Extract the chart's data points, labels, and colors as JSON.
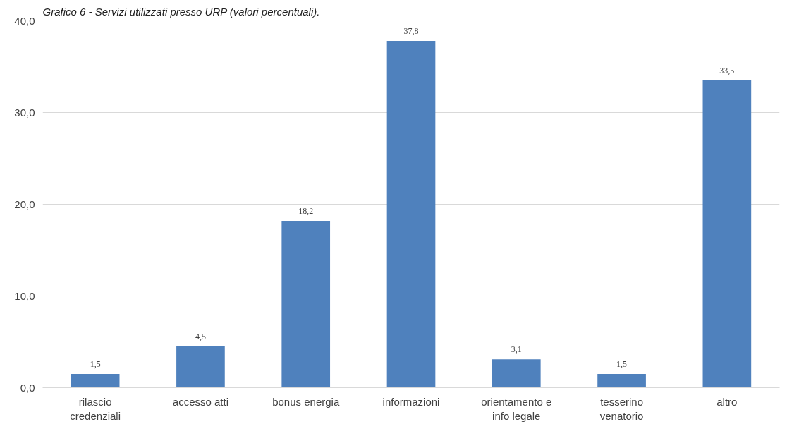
{
  "chart_data": {
    "type": "bar",
    "title": "Grafico 6 - Servizi utilizzati presso URP (valori percentuali).",
    "categories": [
      "rilascio credenziali",
      "accesso atti",
      "bonus energia",
      "informazioni",
      "orientamento e info legale",
      "tesserino venatorio",
      "altro"
    ],
    "values": [
      1.5,
      4.5,
      18.2,
      37.8,
      3.1,
      1.5,
      33.5
    ],
    "value_labels": [
      "1,5",
      "4,5",
      "18,2",
      "37,8",
      "3,1",
      "1,5",
      "33,5"
    ],
    "color": "#4f81bd",
    "ylim": [
      0,
      40
    ],
    "yticks": [
      {
        "value": 0,
        "label": "0,0"
      },
      {
        "value": 10,
        "label": "10,0"
      },
      {
        "value": 20,
        "label": "20,0"
      },
      {
        "value": 30,
        "label": "30,0"
      },
      {
        "value": 40,
        "label": "40,0"
      }
    ],
    "grid": "y"
  }
}
